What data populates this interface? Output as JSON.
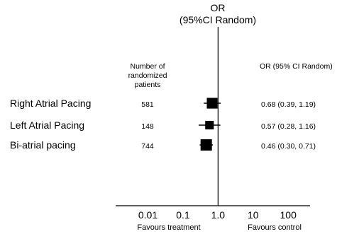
{
  "chart_data": {
    "type": "forest",
    "title_line1": "OR",
    "title_line2": "(95%CI Random)",
    "patients_header": [
      "Number of",
      "randomized",
      "patients"
    ],
    "or_header": "OR (95% CI Random)",
    "x_scale": "log",
    "x_ticks": [
      {
        "value": 0.01,
        "label": "0.01"
      },
      {
        "value": 0.1,
        "label": "0.1"
      },
      {
        "value": 1.0,
        "label": "1.0"
      },
      {
        "value": 10,
        "label": "10"
      },
      {
        "value": 100,
        "label": "100"
      }
    ],
    "xlim": [
      0.0012,
      420
    ],
    "reference_value": 1.0,
    "xlabel_left": "Favours treatment",
    "xlabel_right": "Favours control",
    "studies": [
      {
        "label": "Right Atrial Pacing",
        "patients": "581",
        "or": 0.68,
        "ci_low": 0.39,
        "ci_high": 1.19,
        "ci_text": "0.68 (0.39, 1.19)"
      },
      {
        "label": "Left Atrial Pacing",
        "patients": "148",
        "or": 0.57,
        "ci_low": 0.28,
        "ci_high": 1.16,
        "ci_text": "0.57 (0.28, 1.16)"
      },
      {
        "label": "Bi-atrial pacing",
        "patients": "744",
        "or": 0.46,
        "ci_low": 0.3,
        "ci_high": 0.71,
        "ci_text": "0.46 (0.30, 0.71)"
      }
    ]
  }
}
